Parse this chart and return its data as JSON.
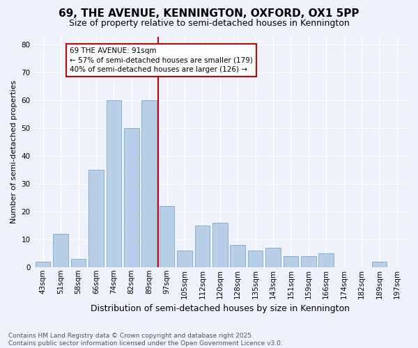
{
  "title": "69, THE AVENUE, KENNINGTON, OXFORD, OX1 5PP",
  "subtitle": "Size of property relative to semi-detached houses in Kennington",
  "xlabel": "Distribution of semi-detached houses by size in Kennington",
  "ylabel": "Number of semi-detached properties",
  "categories": [
    "43sqm",
    "51sqm",
    "58sqm",
    "66sqm",
    "74sqm",
    "82sqm",
    "89sqm",
    "97sqm",
    "105sqm",
    "112sqm",
    "120sqm",
    "128sqm",
    "135sqm",
    "143sqm",
    "151sqm",
    "159sqm",
    "166sqm",
    "174sqm",
    "182sqm",
    "189sqm",
    "197sqm"
  ],
  "values": [
    2,
    12,
    3,
    35,
    60,
    50,
    60,
    22,
    6,
    15,
    16,
    8,
    6,
    7,
    4,
    4,
    5,
    0,
    0,
    2,
    0
  ],
  "bar_color": "#b8cfe8",
  "bar_edge_color": "#8aafd4",
  "red_line_x": 6.5,
  "annotation_text": "69 THE AVENUE: 91sqm\n← 57% of semi-detached houses are smaller (179)\n40% of semi-detached houses are larger (126) →",
  "annotation_box_color": "#ffffff",
  "annotation_border_color": "#cc0000",
  "red_line_color": "#cc0000",
  "ylim": [
    0,
    83
  ],
  "yticks": [
    0,
    10,
    20,
    30,
    40,
    50,
    60,
    70,
    80
  ],
  "bg_color": "#eef2fb",
  "grid_color": "#ffffff",
  "footer": "Contains HM Land Registry data © Crown copyright and database right 2025.\nContains public sector information licensed under the Open Government Licence v3.0.",
  "title_fontsize": 11,
  "subtitle_fontsize": 9,
  "ylabel_fontsize": 8,
  "xlabel_fontsize": 9,
  "tick_fontsize": 7.5,
  "annotation_fontsize": 7.5,
  "footer_fontsize": 6.5
}
